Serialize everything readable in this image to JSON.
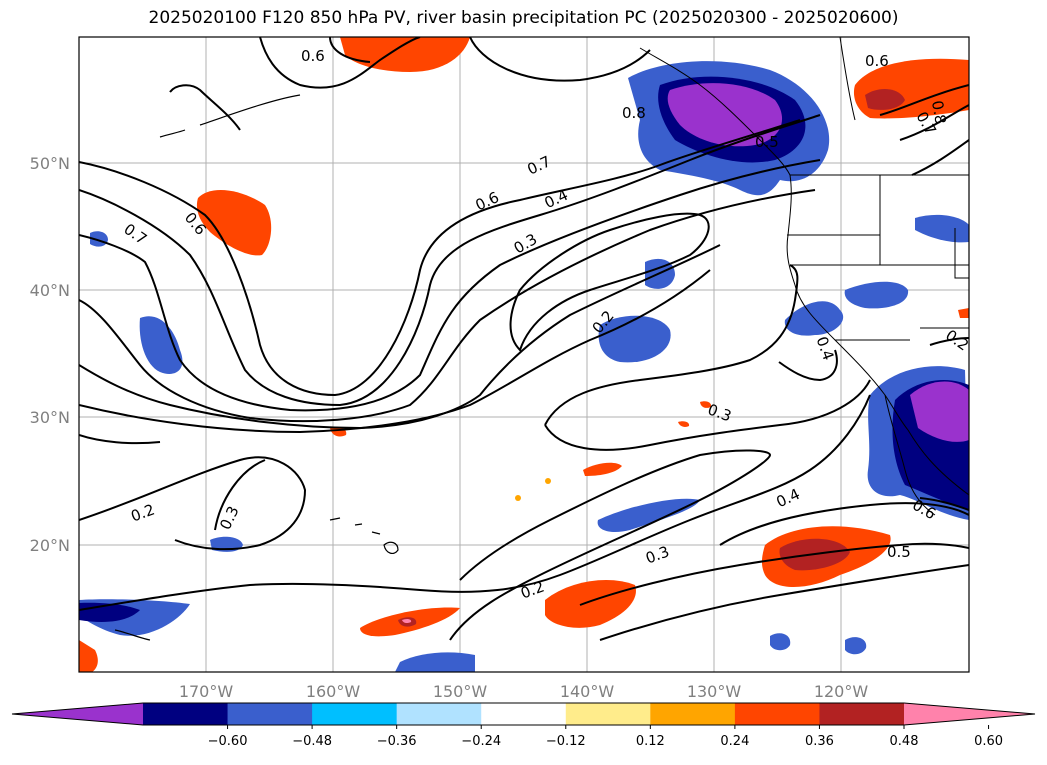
{
  "title": "2025020100 F120 850 hPa PV, river basin precipitation PC (2025020300 - 2025020600)",
  "chart_data": {
    "type": "contour-map",
    "title": "2025020100 F120 850 hPa PV, river basin precipitation PC (2025020300 - 2025020600)",
    "map_extent": {
      "lon": [
        -180,
        -110
      ],
      "lat": [
        10,
        60
      ]
    },
    "longitude_ticks": [
      "170°W",
      "160°W",
      "150°W",
      "140°W",
      "130°W",
      "120°W"
    ],
    "latitude_ticks": [
      "50°N",
      "40°N",
      "30°N",
      "20°N"
    ],
    "grid": true,
    "pv_contour_labels": [
      "0.2",
      "0.3",
      "0.4",
      "0.5",
      "0.6",
      "0.7",
      "0.8"
    ],
    "colorbar": {
      "orientation": "horizontal",
      "extend": "both",
      "ticks": [
        "−0.60",
        "−0.48",
        "−0.36",
        "−0.24",
        "−0.12",
        "0.12",
        "0.24",
        "0.36",
        "0.48",
        "0.60"
      ],
      "colors": [
        "#9a32cd",
        "#000080",
        "#3a5fcd",
        "#00bfff",
        "#b0e2ff",
        "#ffffff",
        "#ffec8b",
        "#ffa500",
        "#ff4500",
        "#b22222",
        "#ff82ab"
      ]
    }
  }
}
